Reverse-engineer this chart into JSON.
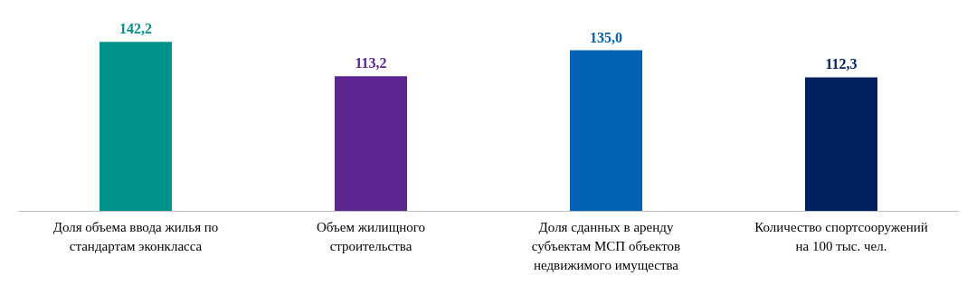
{
  "chart_data": {
    "type": "bar",
    "categories": [
      "Доля объема ввода жилья по стандартам эконкласса",
      "Объем жилищного строительства",
      "Доля сданных в аренду субъектам МСП объектов недвижимого имущества",
      "Количество спортсооружений на 100 тыс. чел."
    ],
    "values": [
      142.2,
      113.2,
      135.0,
      112.3
    ],
    "colors": [
      "#00928c",
      "#5c2590",
      "#0063b4",
      "#002060"
    ],
    "value_labels": [
      "142,2",
      "113,2",
      "135,0",
      "112,3"
    ],
    "grid": false
  }
}
